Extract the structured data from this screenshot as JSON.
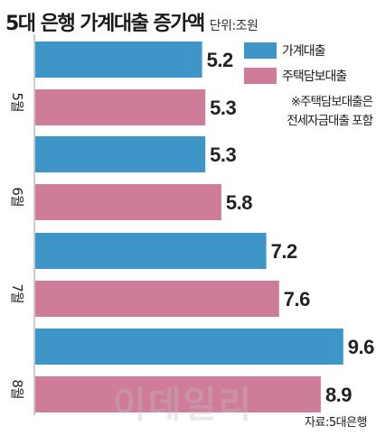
{
  "title": "5대 은행 가계대출 증가액",
  "unit": "단위:조원",
  "legend": [
    {
      "name": "가계대출",
      "color": "#3d95c8"
    },
    {
      "name": "주택담보대출",
      "color": "#cf7c9b"
    }
  ],
  "note_lines": [
    "※주택담보대출은",
    "전세자금대출 포함"
  ],
  "source": "자료:5대은행",
  "watermark": "이데일리",
  "chart_data": {
    "type": "bar",
    "orientation": "horizontal",
    "title": "5대 은행 가계대출 증가액",
    "unit": "조원",
    "categories": [
      "5월",
      "6월",
      "7월",
      "8월"
    ],
    "series": [
      {
        "name": "가계대출",
        "color": "#3d95c8",
        "values": [
          5.2,
          5.3,
          7.2,
          9.6
        ]
      },
      {
        "name": "주택담보대출",
        "color": "#cf7c9b",
        "values": [
          5.3,
          5.8,
          7.6,
          8.9
        ]
      }
    ],
    "value_labels": [
      [
        "5.2",
        "5.3",
        "7.2",
        "9.6"
      ],
      [
        "5.3",
        "5.8",
        "7.6",
        "8.9"
      ]
    ]
  }
}
